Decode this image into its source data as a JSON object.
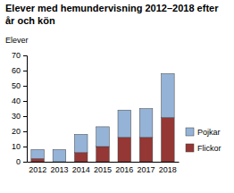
{
  "chart_data": {
    "type": "bar",
    "stacked": true,
    "title": "Elever med hemundervisning 2012–2018 efter år och kön",
    "y_label": "Elever",
    "categories": [
      "2012",
      "2013",
      "2014",
      "2015",
      "2016",
      "2017",
      "2018"
    ],
    "series": [
      {
        "name": "Flickor",
        "color": "#953735",
        "values": [
          2,
          0,
          6,
          10,
          16,
          16,
          29
        ]
      },
      {
        "name": "Pojkar",
        "color": "#95b3d7",
        "values": [
          6,
          8,
          12,
          13,
          18,
          19,
          29
        ]
      }
    ],
    "ylim": [
      0,
      70
    ],
    "yticks": [
      0,
      10,
      20,
      30,
      40,
      50,
      60,
      70
    ],
    "grid": false,
    "legend": "right"
  }
}
